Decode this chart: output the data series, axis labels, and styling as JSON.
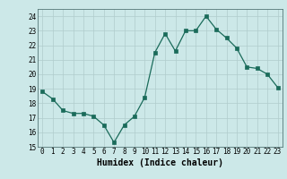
{
  "x": [
    0,
    1,
    2,
    3,
    4,
    5,
    6,
    7,
    8,
    9,
    10,
    11,
    12,
    13,
    14,
    15,
    16,
    17,
    18,
    19,
    20,
    21,
    22,
    23
  ],
  "y": [
    18.8,
    18.3,
    17.5,
    17.3,
    17.3,
    17.1,
    16.5,
    15.3,
    16.5,
    17.1,
    18.4,
    21.5,
    22.8,
    21.6,
    23.0,
    23.0,
    24.0,
    23.1,
    22.5,
    21.8,
    20.5,
    20.4,
    20.0,
    19.1
  ],
  "xlabel": "Humidex (Indice chaleur)",
  "ylim": [
    15,
    24.5
  ],
  "xlim": [
    -0.5,
    23.5
  ],
  "yticks": [
    15,
    16,
    17,
    18,
    19,
    20,
    21,
    22,
    23,
    24
  ],
  "xticks": [
    0,
    1,
    2,
    3,
    4,
    5,
    6,
    7,
    8,
    9,
    10,
    11,
    12,
    13,
    14,
    15,
    16,
    17,
    18,
    19,
    20,
    21,
    22,
    23
  ],
  "line_color": "#1a6b5a",
  "marker_color": "#1a6b5a",
  "bg_color": "#cce8e8",
  "grid_color": "#b0cccc",
  "xlabel_fontsize": 7,
  "tick_fontsize": 5.5
}
